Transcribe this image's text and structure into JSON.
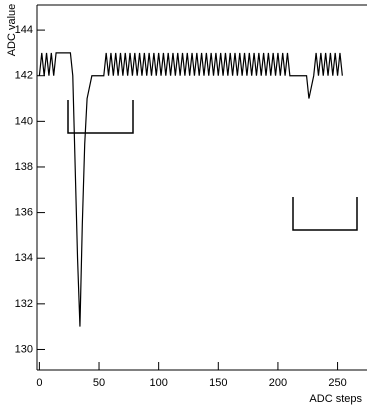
{
  "chart_data": {
    "type": "line",
    "x_label": "ADC steps",
    "y_label": "ADC value",
    "x": [
      0,
      2,
      4,
      6,
      8,
      10,
      12,
      14,
      16,
      18,
      20,
      22,
      24,
      26,
      28,
      30,
      32,
      34,
      36,
      38,
      40,
      42,
      44,
      46,
      48,
      50,
      52,
      54,
      56,
      58,
      60,
      62,
      64,
      66,
      68,
      70,
      72,
      74,
      76,
      78,
      80,
      82,
      84,
      86,
      88,
      90,
      92,
      94,
      96,
      98,
      100,
      102,
      104,
      106,
      108,
      110,
      112,
      114,
      116,
      118,
      120,
      122,
      124,
      126,
      128,
      130,
      132,
      134,
      136,
      138,
      140,
      142,
      144,
      146,
      148,
      150,
      152,
      154,
      156,
      158,
      160,
      162,
      164,
      166,
      168,
      170,
      172,
      174,
      176,
      178,
      180,
      182,
      184,
      186,
      188,
      190,
      192,
      194,
      196,
      198,
      200,
      202,
      204,
      206,
      208,
      210,
      212,
      214,
      216,
      218,
      220,
      222,
      224,
      226,
      228,
      230,
      232,
      234,
      236,
      238,
      240,
      242,
      244,
      246,
      248,
      250,
      252,
      254
    ],
    "values": [
      142,
      143,
      142,
      143,
      142,
      143,
      142,
      143,
      143,
      143,
      143,
      143,
      143,
      143,
      142,
      138,
      134,
      131,
      135.5,
      139,
      141,
      141.5,
      142,
      142,
      142,
      142,
      142,
      142,
      143,
      142,
      143,
      142,
      143,
      142,
      143,
      142,
      143,
      142,
      143,
      142,
      143,
      142,
      143,
      142,
      143,
      142,
      143,
      142,
      143,
      142,
      143,
      142,
      143,
      142,
      143,
      142,
      143,
      142,
      143,
      142,
      143,
      142,
      143,
      142,
      143,
      142,
      143,
      142,
      143,
      142,
      143,
      142,
      143,
      142,
      143,
      142,
      143,
      142,
      143,
      142,
      143,
      142,
      143,
      142,
      143,
      142,
      143,
      142,
      143,
      142,
      143,
      142,
      143,
      142,
      143,
      142,
      143,
      142,
      143,
      142,
      143,
      142,
      143,
      142,
      143,
      142,
      142,
      142,
      142,
      142,
      142,
      142,
      142,
      141,
      141.5,
      142,
      143,
      142,
      143,
      142,
      143,
      142,
      143,
      142,
      143,
      142,
      143,
      142
    ],
    "color": "#000000",
    "xlim": [
      -2,
      273
    ],
    "xticks": [
      0,
      50,
      100,
      150,
      200,
      250
    ],
    "ylim": [
      129.1,
      145.1
    ],
    "yticks": [
      130,
      132,
      134,
      136,
      138,
      140,
      142,
      144
    ],
    "grid": false
  }
}
